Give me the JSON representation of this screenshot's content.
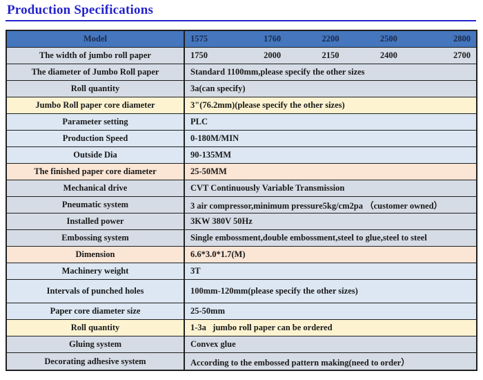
{
  "page": {
    "title": "Production Specifications"
  },
  "colors": {
    "title_color": "#2323cd",
    "border_color": "#1f1f1f",
    "header_bg": "#4576be",
    "header_text": "#1b2a4a",
    "row_gray": "#d6dce5",
    "row_blue": "#dce7f3",
    "row_cream": "#fdf3d1",
    "row_peach": "#fbe5d5"
  },
  "table": {
    "rows": [
      {
        "label": "Model",
        "values": [
          "1575",
          "1760",
          "2200",
          "2500",
          "2800"
        ],
        "band": "header"
      },
      {
        "label": "The width of jumbo roll paper",
        "values": [
          "1750",
          "2000",
          "2150",
          "2400",
          "2700"
        ],
        "band": "gray"
      },
      {
        "label": "The diameter of Jumbo Roll paper",
        "value": "Standard 1100mm,please specify the other sizes",
        "band": "gray"
      },
      {
        "label": "Roll quantity",
        "value": "3a(can specify)",
        "band": "gray"
      },
      {
        "label": "Jumbo Roll paper core diameter",
        "value": "3\"(76.2mm)(please specify the other sizes)",
        "band": "cream"
      },
      {
        "label": "Parameter setting",
        "value": "PLC",
        "band": "blue"
      },
      {
        "label": "Production Speed",
        "value": "0-180M/MIN",
        "band": "blue"
      },
      {
        "label": "Outside Dia",
        "value": "90-135MM",
        "band": "blue"
      },
      {
        "label": "The finished paper core diameter",
        "value": "25-50MM",
        "band": "peach"
      },
      {
        "label": "Mechanical drive",
        "value": "CVT Continuously Variable Transmission",
        "band": "gray"
      },
      {
        "label": "Pneumatic system",
        "value": "3 air compressor,minimum pressure5kg/cm2pa （customer owned）",
        "band": "gray"
      },
      {
        "label": "Installed power",
        "value": "3KW 380V 50Hz",
        "band": "gray"
      },
      {
        "label": "Embossing system",
        "value": "Single embossment,double embossment,steel to glue,steel to steel",
        "band": "gray"
      },
      {
        "label": "Dimension",
        "value": "6.6*3.0*1.7(M)",
        "band": "peach"
      },
      {
        "label": "Machinery weight",
        "value": "3T",
        "band": "blue"
      },
      {
        "label": "Intervals of punched holes",
        "value": "100mm-120mm(please specify the other sizes)",
        "band": "blue",
        "tall": true
      },
      {
        "label": "Paper core diameter size",
        "value": "25-50mm",
        "band": "blue"
      },
      {
        "label": "Roll quantity",
        "value": "1-3a   jumbo roll paper can be ordered",
        "band": "cream"
      },
      {
        "label": "Gluing system",
        "value": "Convex glue",
        "band": "gray"
      },
      {
        "label": "Decorating adhesive system",
        "value": "According to the embossed pattern making(need to order）",
        "band": "gray"
      }
    ]
  }
}
